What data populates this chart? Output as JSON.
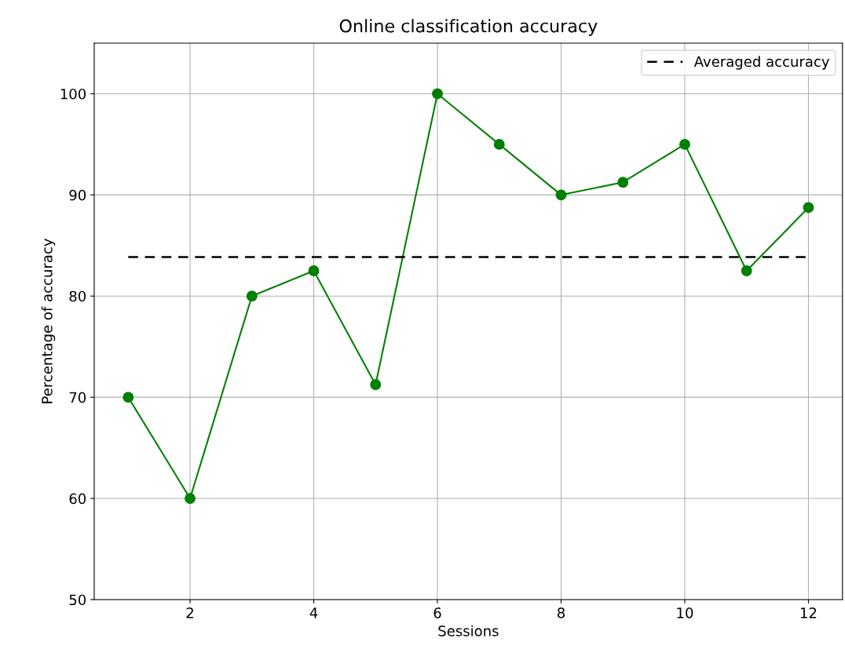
{
  "chart_data": {
    "type": "line",
    "title": "Online classification accuracy",
    "xlabel": "Sessions",
    "ylabel": "Percentage of accuracy",
    "x": [
      1,
      2,
      3,
      4,
      5,
      6,
      7,
      8,
      9,
      10,
      11,
      12
    ],
    "series": [
      {
        "color": "#008000",
        "marker": "circle",
        "line_style": "solid",
        "values": [
          70,
          60,
          80,
          82.5,
          71.25,
          100,
          95,
          90,
          91.25,
          95,
          82.5,
          88.75
        ]
      },
      {
        "name": "Averaged accuracy",
        "color": "#000000",
        "marker": "none",
        "line_style": "dashed",
        "values": [
          83.85,
          83.85,
          83.85,
          83.85,
          83.85,
          83.85,
          83.85,
          83.85,
          83.85,
          83.85,
          83.85,
          83.85
        ]
      }
    ],
    "xlim": [
      0.45,
      12.55
    ],
    "xticks": [
      2,
      4,
      6,
      8,
      10,
      12
    ],
    "ylim": [
      50,
      105
    ],
    "yticks": [
      50,
      60,
      70,
      80,
      90,
      100
    ],
    "grid": true,
    "legend": "top right"
  }
}
